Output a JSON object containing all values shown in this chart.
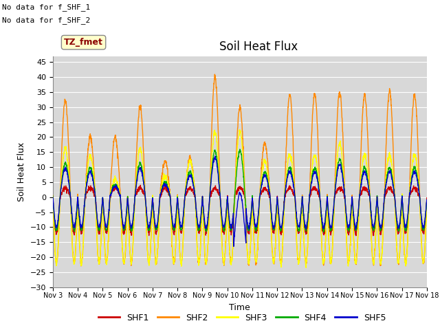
{
  "title": "Soil Heat Flux",
  "xlabel": "Time",
  "ylabel": "Soil Heat Flux",
  "ylim": [
    -30,
    47
  ],
  "yticks": [
    -30,
    -25,
    -20,
    -15,
    -10,
    -5,
    0,
    5,
    10,
    15,
    20,
    25,
    30,
    35,
    40,
    45
  ],
  "xtick_labels": [
    "Nov 3",
    "Nov 4",
    "Nov 5",
    "Nov 6",
    "Nov 7",
    "Nov 8",
    "Nov 9",
    "Nov 10",
    "Nov 11",
    "Nov 12",
    "Nov 13",
    "Nov 14",
    "Nov 15",
    "Nov 16",
    "Nov 17",
    "Nov 18"
  ],
  "legend_labels": [
    "SHF1",
    "SHF2",
    "SHF3",
    "SHF4",
    "SHF5"
  ],
  "line_colors": [
    "#cc0000",
    "#ff8800",
    "#ffff00",
    "#00aa00",
    "#0000cc"
  ],
  "no_data_text1": "No data for f_SHF_1",
  "no_data_text2": "No data for f_SHF_2",
  "tz_label": "TZ_fmet",
  "plot_bg_color": "#d8d8d8",
  "grid_color": "#ffffff",
  "title_fontsize": 12,
  "axis_fontsize": 9,
  "legend_fontsize": 9,
  "linewidth": 1.0,
  "n_days": 15,
  "pts_per_day": 144,
  "day_amp_shf2": [
    32,
    20,
    20,
    30,
    12,
    13,
    40,
    30,
    18,
    34,
    34,
    35,
    34,
    35,
    34
  ],
  "day_amp_shf3": [
    16,
    14,
    6,
    16,
    7,
    12,
    22,
    22,
    12,
    14,
    14,
    18,
    14,
    14,
    14
  ],
  "night_base": -12,
  "shf1_night": -12,
  "shf2_night": -22,
  "shf3_night": -22,
  "shf4_night": -11,
  "shf5_night": -10
}
